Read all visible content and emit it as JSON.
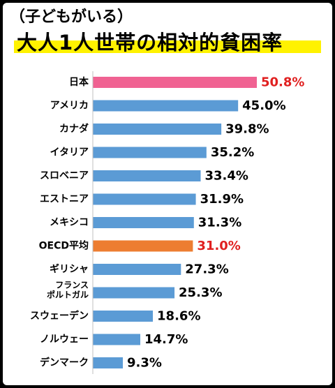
{
  "subtitle": "（子どもがいる）",
  "title": "大人1人世帯の相対的貧困率",
  "colors": {
    "default_bar": "#5b9bd5",
    "japan_bar": "#f06292",
    "oecd_bar": "#ed7d31",
    "highlight_text": "#e02020",
    "default_text": "#000000",
    "axis": "#bfbfbf",
    "title_highlight": "#fff200"
  },
  "chart_data": {
    "type": "bar",
    "orientation": "horizontal",
    "title": "大人1人世帯の相対的貧困率",
    "subtitle": "（子どもがいる）",
    "categories": [
      "日本",
      "アメリカ",
      "カナダ",
      "イタリア",
      "スロベニア",
      "エストニア",
      "メキシコ",
      "OECD平均",
      "ギリシャ",
      "フランス\nポルトガル",
      "スウェーデン",
      "ノルウェー",
      "デンマーク"
    ],
    "values": [
      50.8,
      45.0,
      39.8,
      35.2,
      33.4,
      31.9,
      31.3,
      31.0,
      27.3,
      25.3,
      18.6,
      14.7,
      9.3
    ],
    "value_labels": [
      "50.8%",
      "45.0%",
      "39.8%",
      "35.2%",
      "33.4%",
      "31.9%",
      "31.3%",
      "31.0%",
      "27.3%",
      "25.3%",
      "18.6%",
      "14.7%",
      "9.3%"
    ],
    "highlight": {
      "日本": "pink",
      "OECD平均": "orange"
    },
    "unit": "%",
    "xlim": [
      0,
      50.8
    ],
    "grid": false,
    "legend": "none"
  }
}
